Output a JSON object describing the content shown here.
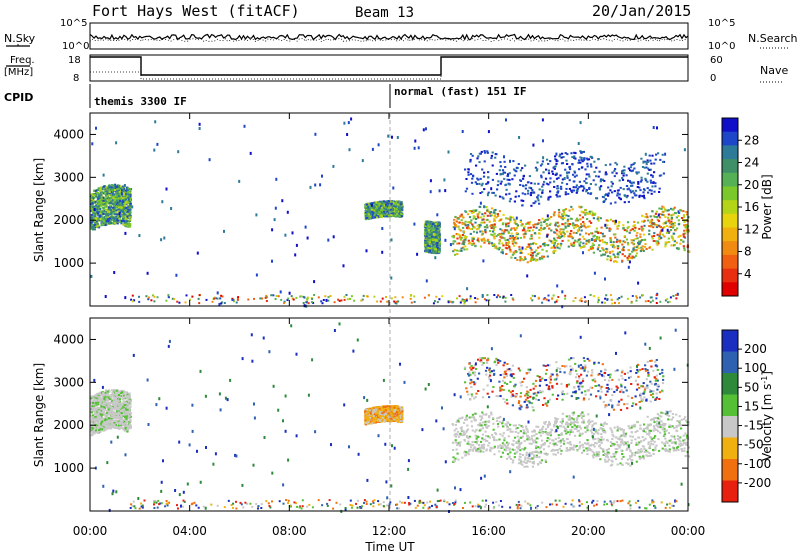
{
  "header": {
    "station": "Fort Hays West (fitACF)",
    "beam": "Beam 13",
    "date": "20/Jan/2015"
  },
  "summary_panel": {
    "nsky_label": "N.Sky",
    "nsearch_label": "N.Search",
    "freq_label_1": "Freq.",
    "freq_label_2": "[MHz]",
    "nave_label": "Nave",
    "cpid_label": "CPID",
    "noise_ticks": [
      "10^5",
      "10^0"
    ],
    "freq_ticks": [
      "18",
      "8"
    ],
    "nave_ticks": [
      "60",
      "0"
    ],
    "cpid_segments": [
      {
        "label": "themis 3300 IF",
        "start_hour": 0
      },
      {
        "label": "normal (fast) 151 IF",
        "start_hour": 12
      }
    ]
  },
  "power_colorbar": {
    "label": "Power [dB]",
    "ticks": [
      "28",
      "24",
      "20",
      "16",
      "12",
      "8",
      "4"
    ],
    "colors": [
      "#1010c8",
      "#1e46c8",
      "#2e7a99",
      "#3f8f67",
      "#55b056",
      "#7ac82a",
      "#b4d418",
      "#e8d40e",
      "#f0b010",
      "#f08a10",
      "#f06010",
      "#e83010",
      "#e00000"
    ]
  },
  "velocity_colorbar": {
    "label": "Velocity [m s",
    "label_sup": "-1",
    "label_end": "]",
    "ticks": [
      "200",
      "100",
      "50",
      "15",
      "-15",
      "-50",
      "-100",
      "-200"
    ],
    "colors": [
      "#1a2fc0",
      "#2e61b0",
      "#2e8a3a",
      "#55c035",
      "#c8c8c8",
      "#f0b010",
      "#f07010",
      "#e82010"
    ]
  },
  "axes": {
    "y_label": "Slant Range [km]",
    "y_ticks": [
      "4000",
      "3000",
      "2000",
      "1000"
    ],
    "x_ticks": [
      "00:00",
      "04:00",
      "08:00",
      "12:00",
      "16:00",
      "20:00",
      "00:00"
    ],
    "x_label": "Time UT"
  },
  "chart_data": {
    "type": "heatmap",
    "title": "Fort Hays West (fitACF)",
    "x_unit": "hours UT",
    "xlim": [
      0,
      24
    ],
    "ylim": [
      0,
      4500
    ],
    "y_unit": "km",
    "panels": [
      {
        "name": "Power",
        "colorbar": "Power [dB]",
        "regions": [
          {
            "t0": 0.0,
            "t1": 1.6,
            "r0": 1650,
            "r1": 2800,
            "level": "medium"
          },
          {
            "t0": 11.0,
            "t1": 12.5,
            "r0": 2000,
            "r1": 2450,
            "level": "medium"
          },
          {
            "t0": 13.4,
            "t1": 14.0,
            "r0": 1300,
            "r1": 2200,
            "level": "medium"
          },
          {
            "t0": 14.5,
            "t1": 24.0,
            "r0": 1100,
            "r1": 2300,
            "level": "high"
          },
          {
            "t0": 15.0,
            "t1": 23.0,
            "r0": 2500,
            "r1": 3500,
            "level": "low"
          }
        ]
      },
      {
        "name": "Velocity",
        "colorbar": "Velocity [m s-1]",
        "regions": [
          {
            "t0": 0.0,
            "t1": 1.6,
            "r0": 1650,
            "r1": 2800,
            "level": "near-zero"
          },
          {
            "t0": 11.0,
            "t1": 12.5,
            "r0": 2000,
            "r1": 2450,
            "level": "negative"
          },
          {
            "t0": 14.5,
            "t1": 24.0,
            "r0": 1100,
            "r1": 2300,
            "level": "near-zero"
          },
          {
            "t0": 15.0,
            "t1": 23.0,
            "r0": 2500,
            "r1": 3500,
            "level": "mixed"
          }
        ]
      }
    ]
  }
}
